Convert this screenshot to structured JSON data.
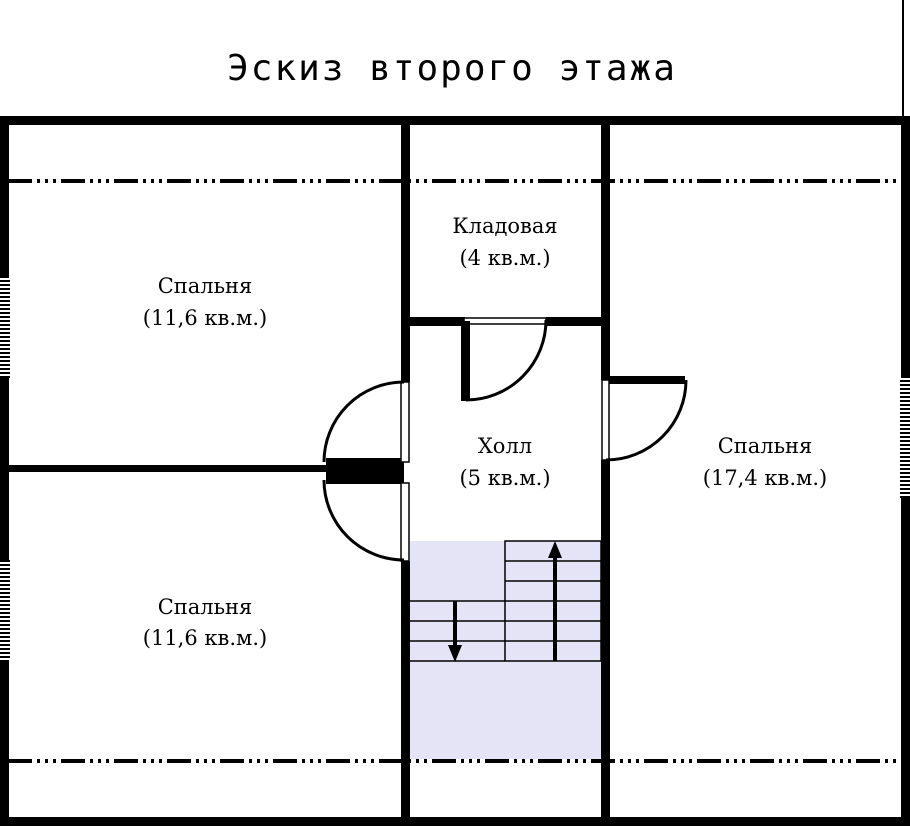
{
  "title": "Эскиз второго этажа",
  "colors": {
    "walls": "#000000",
    "stair_well": "#e4e4f6",
    "background": "#ffffff"
  },
  "rooms": {
    "bedroom_top_left": {
      "name": "Спальня",
      "area": "(11,6 кв.м.)"
    },
    "bedroom_bottom_left": {
      "name": "Спальня",
      "area": "(11,6 кв.м.)"
    },
    "storage": {
      "name": "Кладовая",
      "area": "(4 кв.м.)"
    },
    "hall": {
      "name": "Холл",
      "area": "(5 кв.м.)"
    },
    "bedroom_right": {
      "name": "Спальня",
      "area": "(17,4 кв.м.)"
    }
  }
}
